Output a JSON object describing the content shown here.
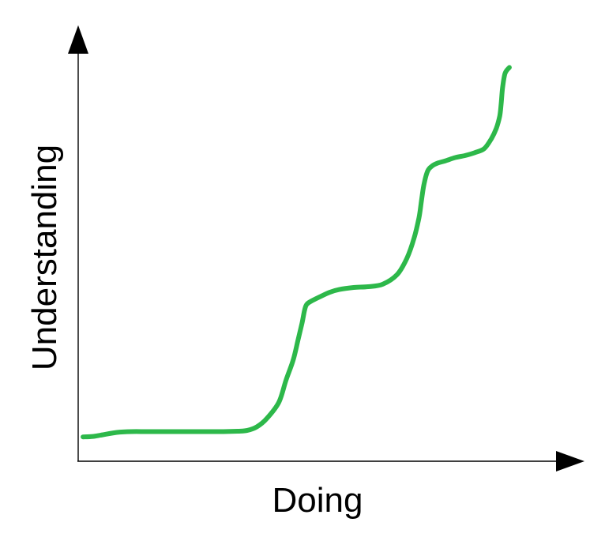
{
  "chart_data": {
    "type": "line",
    "title": "",
    "xlabel": "Doing",
    "ylabel": "Understanding",
    "grid": false,
    "legend": "none",
    "xlim": [
      0,
      100
    ],
    "ylim": [
      0,
      100
    ],
    "series": [
      {
        "color": "#2db84a",
        "x": [
          1,
          3,
          5,
          8,
          11,
          14,
          17,
          20,
          24,
          27,
          30,
          33,
          35,
          37,
          39,
          41.5,
          43,
          44.5,
          45.5,
          46.3,
          46.8,
          47.2,
          48,
          50,
          52,
          54,
          57,
          60,
          63,
          66,
          68,
          69.5,
          70.5,
          71,
          71.5,
          72.3,
          73.3,
          74.5,
          76,
          78,
          80,
          82,
          84,
          85.5,
          86.5,
          87.2,
          87.5,
          87.8,
          88.3,
          89.2
        ],
        "y": [
          6,
          6.1,
          6.5,
          7.1,
          7.3,
          7.3,
          7.3,
          7.3,
          7.3,
          7.3,
          7.3,
          7.4,
          7.6,
          8.5,
          10.5,
          14.5,
          20,
          25,
          30,
          34,
          37,
          38.5,
          39.3,
          40.5,
          41.6,
          42.3,
          42.8,
          43,
          43.6,
          46,
          50,
          55,
          60,
          64,
          68,
          71.5,
          72.8,
          73.5,
          74,
          74.8,
          75.3,
          76,
          77,
          79.5,
          82,
          85,
          88,
          92,
          95.5,
          97
        ]
      }
    ]
  }
}
